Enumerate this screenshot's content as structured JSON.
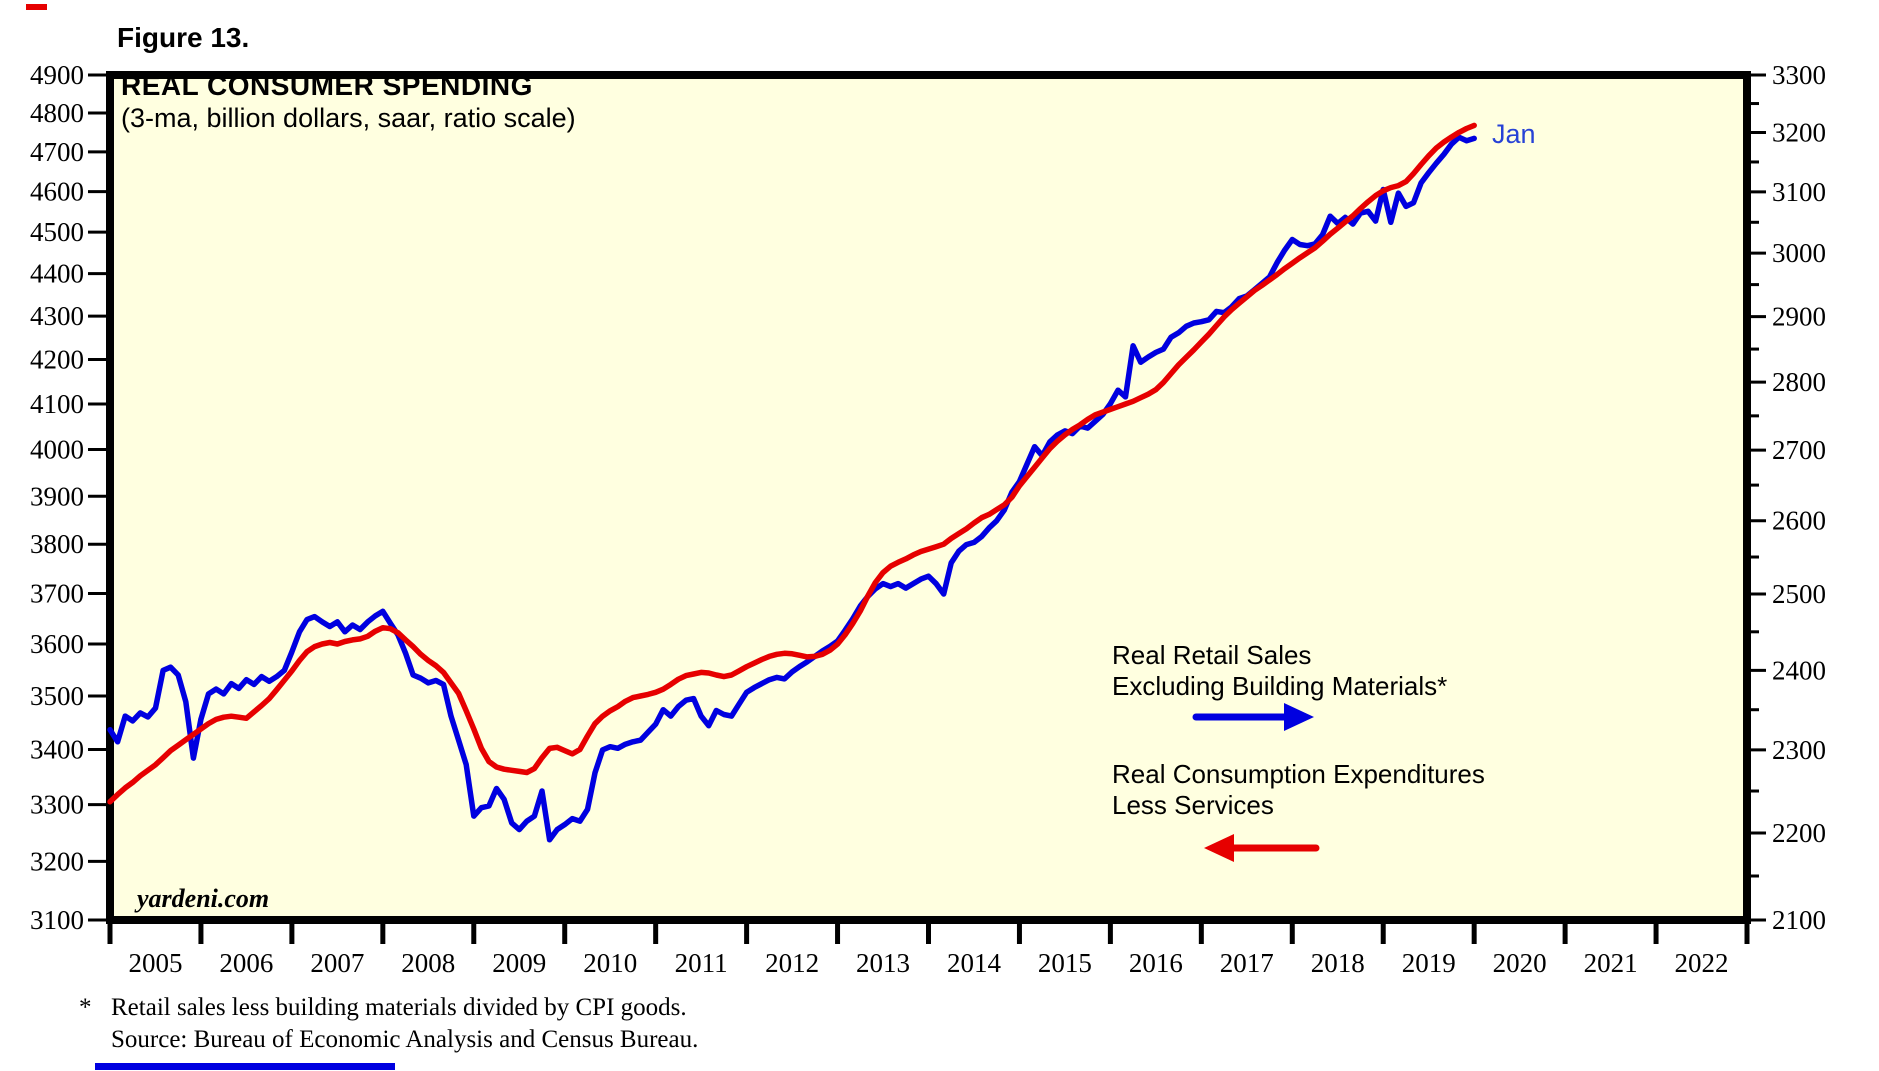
{
  "header": {
    "figure_label": "Figure 13."
  },
  "chart_data": {
    "type": "line",
    "title": "REAL CONSUMER SPENDING",
    "subtitle": "(3-ma, billion dollars, saar, ratio scale)",
    "watermark": "yardeni.com",
    "end_label": "Jan",
    "plot_background": "#ffffe0",
    "border_color": "#000000",
    "x_axis": {
      "min": 2005,
      "max": 2023,
      "year_labels": [
        "2005",
        "2006",
        "2007",
        "2008",
        "2009",
        "2010",
        "2011",
        "2012",
        "2013",
        "2014",
        "2015",
        "2016",
        "2017",
        "2018",
        "2019",
        "2020",
        "2021",
        "2022"
      ]
    },
    "left_axis": {
      "scale": "log",
      "max": 4900,
      "min": 3100,
      "ticks": [
        4900,
        4800,
        4700,
        4600,
        4500,
        4400,
        4300,
        4200,
        4100,
        4000,
        3900,
        3800,
        3700,
        3600,
        3500,
        3400,
        3300,
        3200,
        3100
      ]
    },
    "right_axis": {
      "scale": "log",
      "max": 3300,
      "min": 2100,
      "ticks": [
        3300,
        3200,
        3100,
        3000,
        2900,
        2800,
        2700,
        2600,
        2500,
        2400,
        2300,
        2200,
        2100
      ],
      "minor_ticks": [
        3250,
        3150,
        3050,
        2950,
        2850,
        2750,
        2650,
        2550,
        2450,
        2350,
        2250,
        2150
      ]
    },
    "series": [
      {
        "name": "Real Retail Sales Excluding Building Materials*",
        "color": "#0000e0",
        "axis": "right",
        "start_year": 2005,
        "monthly_values": [
          2325,
          2310,
          2342,
          2336,
          2346,
          2341,
          2352,
          2400,
          2404,
          2394,
          2360,
          2290,
          2338,
          2370,
          2376,
          2370,
          2383,
          2377,
          2388,
          2382,
          2392,
          2386,
          2392,
          2400,
          2424,
          2450,
          2466,
          2470,
          2463,
          2457,
          2463,
          2450,
          2459,
          2453,
          2463,
          2471,
          2477,
          2461,
          2446,
          2422,
          2394,
          2390,
          2384,
          2387,
          2382,
          2342,
          2312,
          2282,
          2220,
          2230,
          2232,
          2253,
          2240,
          2212,
          2204,
          2214,
          2220,
          2250,
          2192,
          2204,
          2210,
          2217,
          2214,
          2228,
          2272,
          2300,
          2304,
          2302,
          2307,
          2310,
          2312,
          2322,
          2332,
          2350,
          2342,
          2354,
          2362,
          2364,
          2342,
          2330,
          2349,
          2344,
          2342,
          2357,
          2372,
          2378,
          2383,
          2388,
          2391,
          2389,
          2398,
          2405,
          2411,
          2418,
          2425,
          2431,
          2438,
          2452,
          2467,
          2484,
          2497,
          2507,
          2514,
          2510,
          2514,
          2508,
          2514,
          2520,
          2524,
          2514,
          2500,
          2542,
          2558,
          2567,
          2570,
          2578,
          2590,
          2600,
          2615,
          2640,
          2655,
          2680,
          2705,
          2692,
          2712,
          2722,
          2728,
          2724,
          2735,
          2732,
          2742,
          2752,
          2768,
          2788,
          2778,
          2855,
          2830,
          2838,
          2845,
          2850,
          2868,
          2875,
          2885,
          2890,
          2892,
          2895,
          2908,
          2906,
          2915,
          2928,
          2932,
          2942,
          2952,
          2962,
          2985,
          3005,
          3022,
          3014,
          3012,
          3015,
          3030,
          3060,
          3048,
          3058,
          3047,
          3065,
          3068,
          3052,
          3104,
          3050,
          3098,
          3076,
          3082,
          3115,
          3132,
          3148,
          3163,
          3180,
          3192,
          3186,
          3190
        ]
      },
      {
        "name": "Real Consumption Expenditures Less Services",
        "color": "#e60000",
        "axis": "left",
        "start_year": 2005,
        "monthly_values": [
          3305,
          3318,
          3330,
          3340,
          3352,
          3362,
          3372,
          3385,
          3398,
          3408,
          3418,
          3428,
          3438,
          3448,
          3456,
          3460,
          3462,
          3460,
          3458,
          3470,
          3482,
          3495,
          3512,
          3530,
          3548,
          3568,
          3585,
          3595,
          3600,
          3603,
          3600,
          3605,
          3608,
          3610,
          3615,
          3625,
          3632,
          3630,
          3622,
          3608,
          3595,
          3580,
          3568,
          3558,
          3545,
          3525,
          3505,
          3472,
          3438,
          3402,
          3378,
          3368,
          3364,
          3362,
          3360,
          3358,
          3365,
          3385,
          3402,
          3404,
          3398,
          3392,
          3400,
          3425,
          3448,
          3462,
          3472,
          3480,
          3490,
          3497,
          3500,
          3503,
          3507,
          3513,
          3522,
          3532,
          3539,
          3542,
          3545,
          3544,
          3540,
          3537,
          3540,
          3548,
          3556,
          3563,
          3570,
          3576,
          3580,
          3582,
          3581,
          3578,
          3575,
          3576,
          3580,
          3588,
          3600,
          3618,
          3640,
          3665,
          3695,
          3722,
          3742,
          3755,
          3763,
          3770,
          3778,
          3785,
          3790,
          3795,
          3800,
          3812,
          3822,
          3832,
          3844,
          3855,
          3862,
          3872,
          3882,
          3898,
          3922,
          3942,
          3962,
          3982,
          4002,
          4018,
          4032,
          4044,
          4054,
          4066,
          4076,
          4082,
          4088,
          4094,
          4100,
          4106,
          4114,
          4122,
          4132,
          4148,
          4168,
          4188,
          4205,
          4222,
          4240,
          4258,
          4278,
          4298,
          4315,
          4330,
          4345,
          4360,
          4372,
          4385,
          4398,
          4412,
          4425,
          4438,
          4450,
          4462,
          4478,
          4495,
          4510,
          4525,
          4540,
          4558,
          4575,
          4590,
          4602,
          4610,
          4615,
          4625,
          4645,
          4668,
          4690,
          4710,
          4725,
          4738,
          4750,
          4760,
          4768
        ]
      }
    ],
    "legend": [
      {
        "line1": "Real Retail Sales",
        "line2": "Excluding Building Materials*",
        "arrow_color": "#0000e0",
        "arrow_direction": "right"
      },
      {
        "line1": "Real Consumption Expenditures",
        "line2": "Less Services",
        "arrow_color": "#e60000",
        "arrow_direction": "left"
      }
    ]
  },
  "footnote": {
    "marker": "*",
    "line1": "Retail sales less building materials divided by CPI goods.",
    "line2": "Source: Bureau of Economic Analysis and Census Bureau."
  }
}
